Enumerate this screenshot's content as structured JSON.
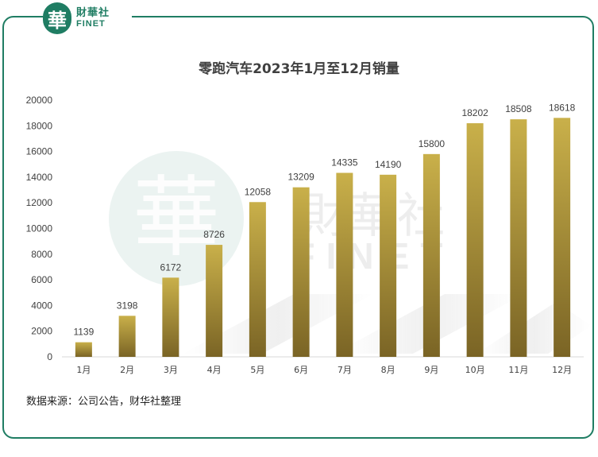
{
  "logo": {
    "glyph": "華",
    "name_cn": "財華社",
    "name_en": "FINET"
  },
  "watermark": {
    "glyph": "華",
    "name_cn": "財華社",
    "name_en": "FINET"
  },
  "source_note": "数据来源：公司公告，财华社整理",
  "colors": {
    "brand": "#1f7d63",
    "bar_top": "#c9b04a",
    "bar_bottom": "#7a6425"
  },
  "chart_data": {
    "type": "bar",
    "title": "零跑汽车2023年1月至12月销量",
    "xlabel": "",
    "ylabel": "",
    "categories": [
      "1月",
      "2月",
      "3月",
      "4月",
      "5月",
      "6月",
      "7月",
      "8月",
      "9月",
      "10月",
      "11月",
      "12月"
    ],
    "values": [
      1139,
      3198,
      6172,
      8726,
      12058,
      13209,
      14335,
      14190,
      15800,
      18202,
      18508,
      18618
    ],
    "ylim": [
      0,
      20000
    ],
    "yticks": [
      0,
      2000,
      4000,
      6000,
      8000,
      10000,
      12000,
      14000,
      16000,
      18000,
      20000
    ],
    "grid": false,
    "legend": "none",
    "data_labels": true
  }
}
